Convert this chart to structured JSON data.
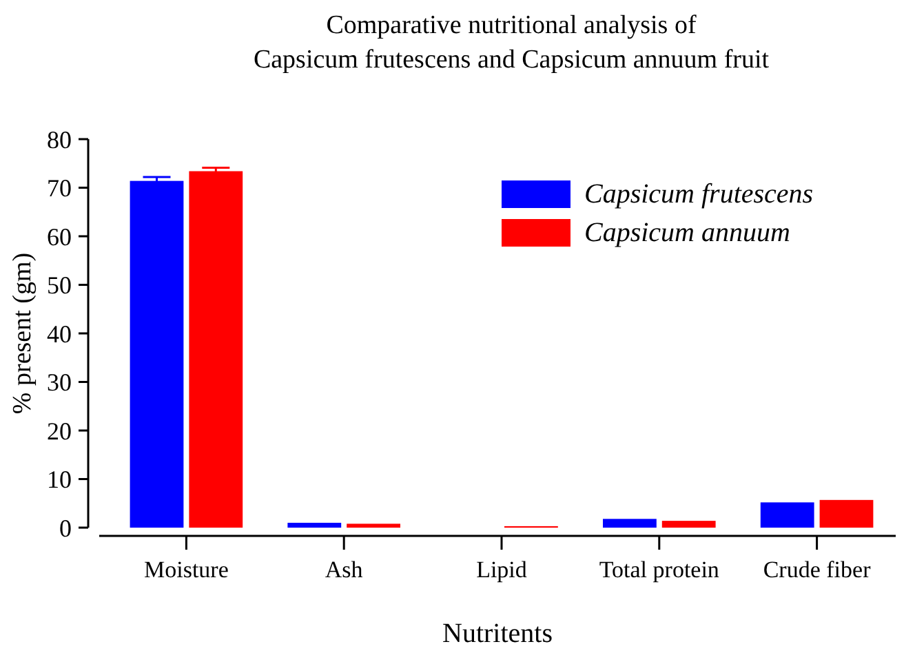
{
  "chart_data": {
    "type": "bar",
    "title": "Comparative nutritional analysis of\nCapsicum frutescens and Capsicum annuum fruit",
    "xlabel": "Nutritents",
    "ylabel": "% present (gm)",
    "categories": [
      "Moisture",
      "Ash",
      "Lipid",
      "Total protein",
      "Crude fiber"
    ],
    "series": [
      {
        "name": "Capsicum frutescens",
        "color": "#0000ff",
        "values": [
          71.4,
          1.0,
          null,
          1.8,
          5.2
        ],
        "errors": [
          0.8,
          null,
          null,
          null,
          null
        ]
      },
      {
        "name": "Capsicum annuum",
        "color": "#ff0000",
        "values": [
          73.4,
          0.8,
          0.3,
          1.4,
          5.7
        ],
        "errors": [
          0.7,
          null,
          null,
          null,
          null
        ]
      }
    ],
    "ylim": [
      0,
      80
    ],
    "yticks": [
      0,
      10,
      20,
      30,
      40,
      50,
      60,
      70,
      80
    ],
    "legend": "top right",
    "grid": false
  }
}
